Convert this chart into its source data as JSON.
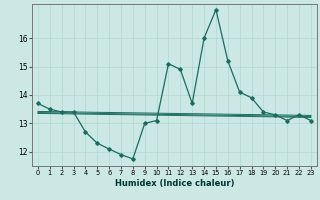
{
  "xlabel": "Humidex (Indice chaleur)",
  "ylabel": "",
  "background_color": "#cce8e4",
  "grid_color": "#b0d8d4",
  "line_color": "#1a6b60",
  "xlim": [
    -0.5,
    23.5
  ],
  "ylim": [
    11.5,
    17.2
  ],
  "yticks": [
    12,
    13,
    14,
    15,
    16
  ],
  "xticks": [
    0,
    1,
    2,
    3,
    4,
    5,
    6,
    7,
    8,
    9,
    10,
    11,
    12,
    13,
    14,
    15,
    16,
    17,
    18,
    19,
    20,
    21,
    22,
    23
  ],
  "main_series": [
    [
      0,
      13.7
    ],
    [
      1,
      13.5
    ],
    [
      2,
      13.4
    ],
    [
      3,
      13.4
    ],
    [
      4,
      12.7
    ],
    [
      5,
      12.3
    ],
    [
      6,
      12.1
    ],
    [
      7,
      11.9
    ],
    [
      8,
      11.75
    ],
    [
      9,
      13.0
    ],
    [
      10,
      13.1
    ],
    [
      11,
      15.1
    ],
    [
      12,
      14.9
    ],
    [
      13,
      13.7
    ],
    [
      14,
      16.0
    ],
    [
      15,
      17.0
    ],
    [
      16,
      15.2
    ],
    [
      17,
      14.1
    ],
    [
      18,
      13.9
    ],
    [
      19,
      13.4
    ],
    [
      20,
      13.3
    ],
    [
      21,
      13.1
    ],
    [
      22,
      13.3
    ],
    [
      23,
      13.1
    ]
  ],
  "flat_series": [
    [
      0,
      13.42
    ],
    [
      23,
      13.28
    ]
  ],
  "flat_series2": [
    [
      0,
      13.38
    ],
    [
      23,
      13.24
    ]
  ],
  "flat_series3": [
    [
      0,
      13.35
    ],
    [
      23,
      13.21
    ]
  ]
}
